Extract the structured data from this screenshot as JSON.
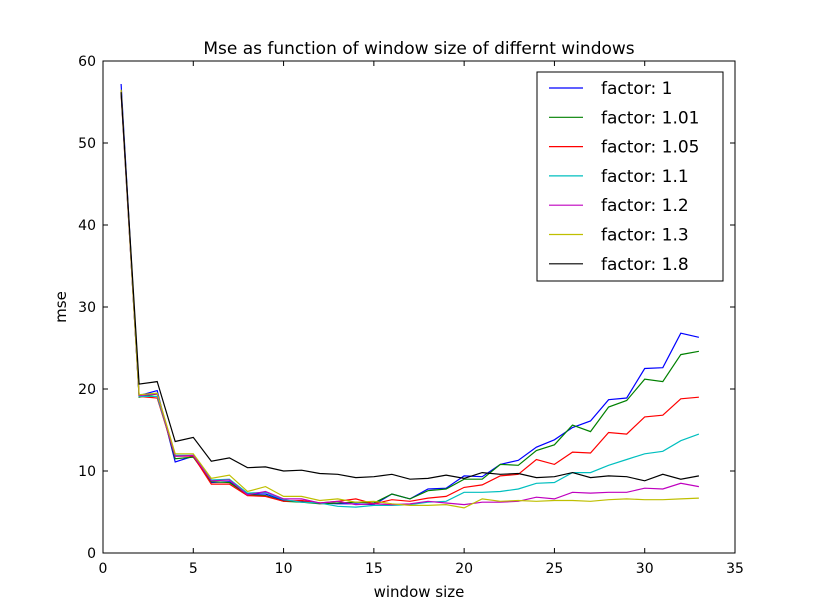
{
  "chart_data": {
    "type": "line",
    "title": "Mse as function of window size of differnt windows",
    "xlabel": "window size",
    "ylabel": "mse",
    "xlim": [
      0,
      35
    ],
    "ylim": [
      0,
      60
    ],
    "xticks": [
      0,
      5,
      10,
      15,
      20,
      25,
      30,
      35
    ],
    "yticks": [
      0,
      10,
      20,
      30,
      40,
      50,
      60
    ],
    "grid": false,
    "legend_position": "top-right",
    "x": [
      1,
      2,
      3,
      4,
      5,
      6,
      7,
      8,
      9,
      10,
      11,
      12,
      13,
      14,
      15,
      16,
      17,
      18,
      19,
      20,
      21,
      22,
      23,
      24,
      25,
      26,
      27,
      28,
      29,
      30,
      31,
      32,
      33
    ],
    "series": [
      {
        "name": "factor: 1",
        "color": "#0000ff",
        "values": [
          57.2,
          19.2,
          19.8,
          11.1,
          11.8,
          8.6,
          8.7,
          7.2,
          7.2,
          6.4,
          6.3,
          6.1,
          6.0,
          6.0,
          5.9,
          7.2,
          6.6,
          7.8,
          7.9,
          9.4,
          9.3,
          10.8,
          11.3,
          12.9,
          13.8,
          15.3,
          16.1,
          18.7,
          18.9,
          22.5,
          22.6,
          26.8,
          26.3
        ]
      },
      {
        "name": "factor: 1.01",
        "color": "#008000",
        "values": [
          56.4,
          19.0,
          19.4,
          11.5,
          11.7,
          8.7,
          8.6,
          7.1,
          7.0,
          6.3,
          6.2,
          6.0,
          6.1,
          6.2,
          6.1,
          7.2,
          6.6,
          7.6,
          7.8,
          9.0,
          9.0,
          10.8,
          10.7,
          12.5,
          13.2,
          15.6,
          14.8,
          17.8,
          18.6,
          21.2,
          20.9,
          24.2,
          24.6
        ]
      },
      {
        "name": "factor: 1.05",
        "color": "#ff0000",
        "values": [
          56.0,
          19.1,
          18.9,
          11.8,
          11.8,
          8.4,
          8.4,
          7.0,
          6.9,
          6.3,
          6.4,
          6.1,
          6.3,
          6.6,
          6.0,
          6.5,
          6.3,
          6.7,
          6.9,
          8.0,
          8.3,
          9.4,
          9.6,
          11.4,
          10.8,
          12.3,
          12.2,
          14.7,
          14.5,
          16.6,
          16.8,
          18.8,
          19.0
        ]
      },
      {
        "name": "factor: 1.1",
        "color": "#00bfbf",
        "values": [
          56.2,
          19.1,
          19.1,
          11.9,
          11.9,
          8.9,
          9.0,
          7.3,
          7.4,
          6.5,
          6.2,
          6.1,
          5.7,
          5.6,
          5.8,
          5.8,
          5.9,
          6.2,
          6.3,
          7.4,
          7.4,
          7.5,
          7.8,
          8.5,
          8.6,
          9.8,
          9.8,
          10.7,
          11.4,
          12.1,
          12.4,
          13.7,
          14.5
        ]
      },
      {
        "name": "factor: 1.2",
        "color": "#bf00bf",
        "values": [
          56.3,
          19.2,
          19.4,
          11.8,
          11.9,
          8.8,
          8.9,
          7.1,
          7.5,
          6.6,
          6.6,
          6.1,
          6.3,
          5.9,
          6.0,
          5.9,
          6.0,
          6.3,
          6.1,
          5.9,
          6.2,
          6.2,
          6.3,
          6.8,
          6.6,
          7.4,
          7.3,
          7.4,
          7.4,
          7.9,
          7.8,
          8.5,
          8.1
        ]
      },
      {
        "name": "factor: 1.3",
        "color": "#bfbf00",
        "values": [
          56.5,
          19.3,
          19.5,
          12.1,
          12.1,
          9.1,
          9.5,
          7.5,
          8.1,
          6.9,
          6.9,
          6.4,
          6.6,
          6.2,
          6.3,
          6.0,
          5.8,
          5.8,
          5.9,
          5.5,
          6.6,
          6.3,
          6.4,
          6.3,
          6.4,
          6.4,
          6.3,
          6.5,
          6.6,
          6.5,
          6.5,
          6.6,
          6.7
        ]
      },
      {
        "name": "factor: 1.8",
        "color": "#000000",
        "values": [
          56.2,
          20.6,
          20.9,
          13.6,
          14.1,
          11.2,
          11.6,
          10.4,
          10.5,
          10.0,
          10.1,
          9.7,
          9.6,
          9.2,
          9.3,
          9.6,
          9.0,
          9.1,
          9.5,
          9.1,
          9.8,
          9.6,
          9.7,
          9.2,
          9.3,
          9.8,
          9.2,
          9.4,
          9.3,
          8.8,
          9.6,
          9.0,
          9.4
        ]
      }
    ]
  }
}
